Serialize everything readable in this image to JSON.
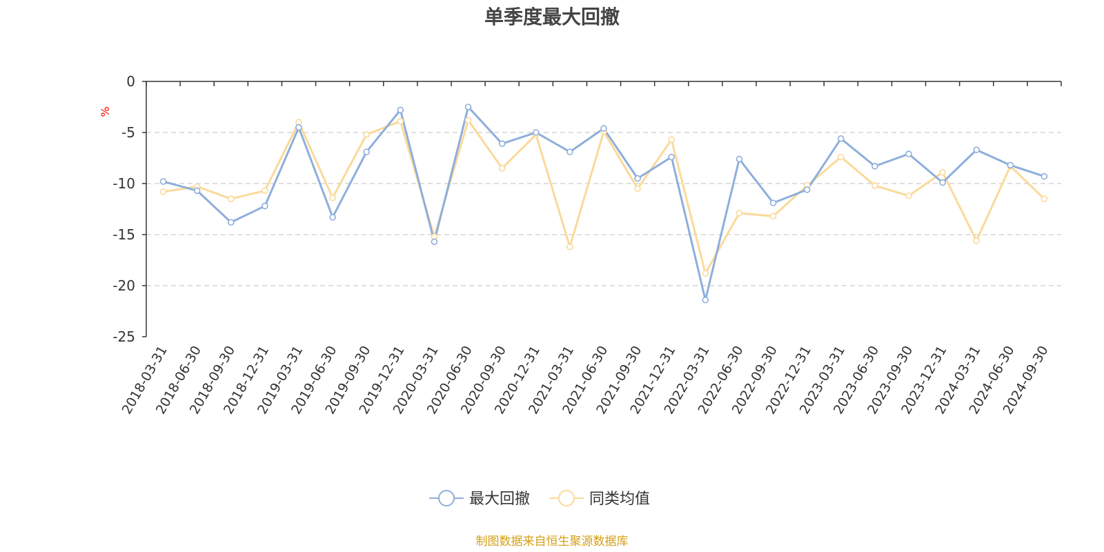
{
  "chart_data": {
    "type": "line",
    "title": "单季度最大回撤",
    "ylabel": "%",
    "xlabel": "",
    "ylim": [
      -25,
      0
    ],
    "yticks": [
      0,
      -5,
      -10,
      -15,
      -20,
      -25
    ],
    "grid": true,
    "legend_position": "bottom",
    "categories": [
      "2018-03-31",
      "2018-06-30",
      "2018-09-30",
      "2018-12-31",
      "2019-03-31",
      "2019-06-30",
      "2019-09-30",
      "2019-12-31",
      "2020-03-31",
      "2020-06-30",
      "2020-09-30",
      "2020-12-31",
      "2021-03-31",
      "2021-06-30",
      "2021-09-30",
      "2021-12-31",
      "2022-03-31",
      "2022-06-30",
      "2022-09-30",
      "2022-12-31",
      "2023-03-31",
      "2023-06-30",
      "2023-09-30",
      "2023-12-31",
      "2024-03-31",
      "2024-06-30",
      "2024-09-30"
    ],
    "series": [
      {
        "name": "最大回撤",
        "color": "#8eaedb",
        "values": [
          -9.8,
          -10.7,
          -13.8,
          -12.2,
          -4.5,
          -13.3,
          -6.9,
          -2.8,
          -15.7,
          -2.5,
          -6.1,
          -5.0,
          -6.9,
          -4.6,
          -9.5,
          -7.4,
          -21.4,
          -7.6,
          -11.9,
          -10.6,
          -5.6,
          -8.3,
          -7.1,
          -9.9,
          -6.7,
          -8.2,
          -9.3
        ]
      },
      {
        "name": "同类均值",
        "color": "#fbd99a",
        "values": [
          -10.8,
          -10.3,
          -11.5,
          -10.7,
          -4.0,
          -11.4,
          -5.2,
          -3.9,
          -15.2,
          -3.8,
          -8.5,
          -5.2,
          -16.2,
          -4.9,
          -10.5,
          -5.7,
          -18.8,
          -12.9,
          -13.2,
          -10.2,
          -7.4,
          -10.2,
          -11.2,
          -8.9,
          -15.6,
          -8.3,
          -11.5
        ]
      }
    ]
  },
  "footer": {
    "source": "制图数据来自恒生聚源数据库",
    "source_color": "#d4a017"
  }
}
